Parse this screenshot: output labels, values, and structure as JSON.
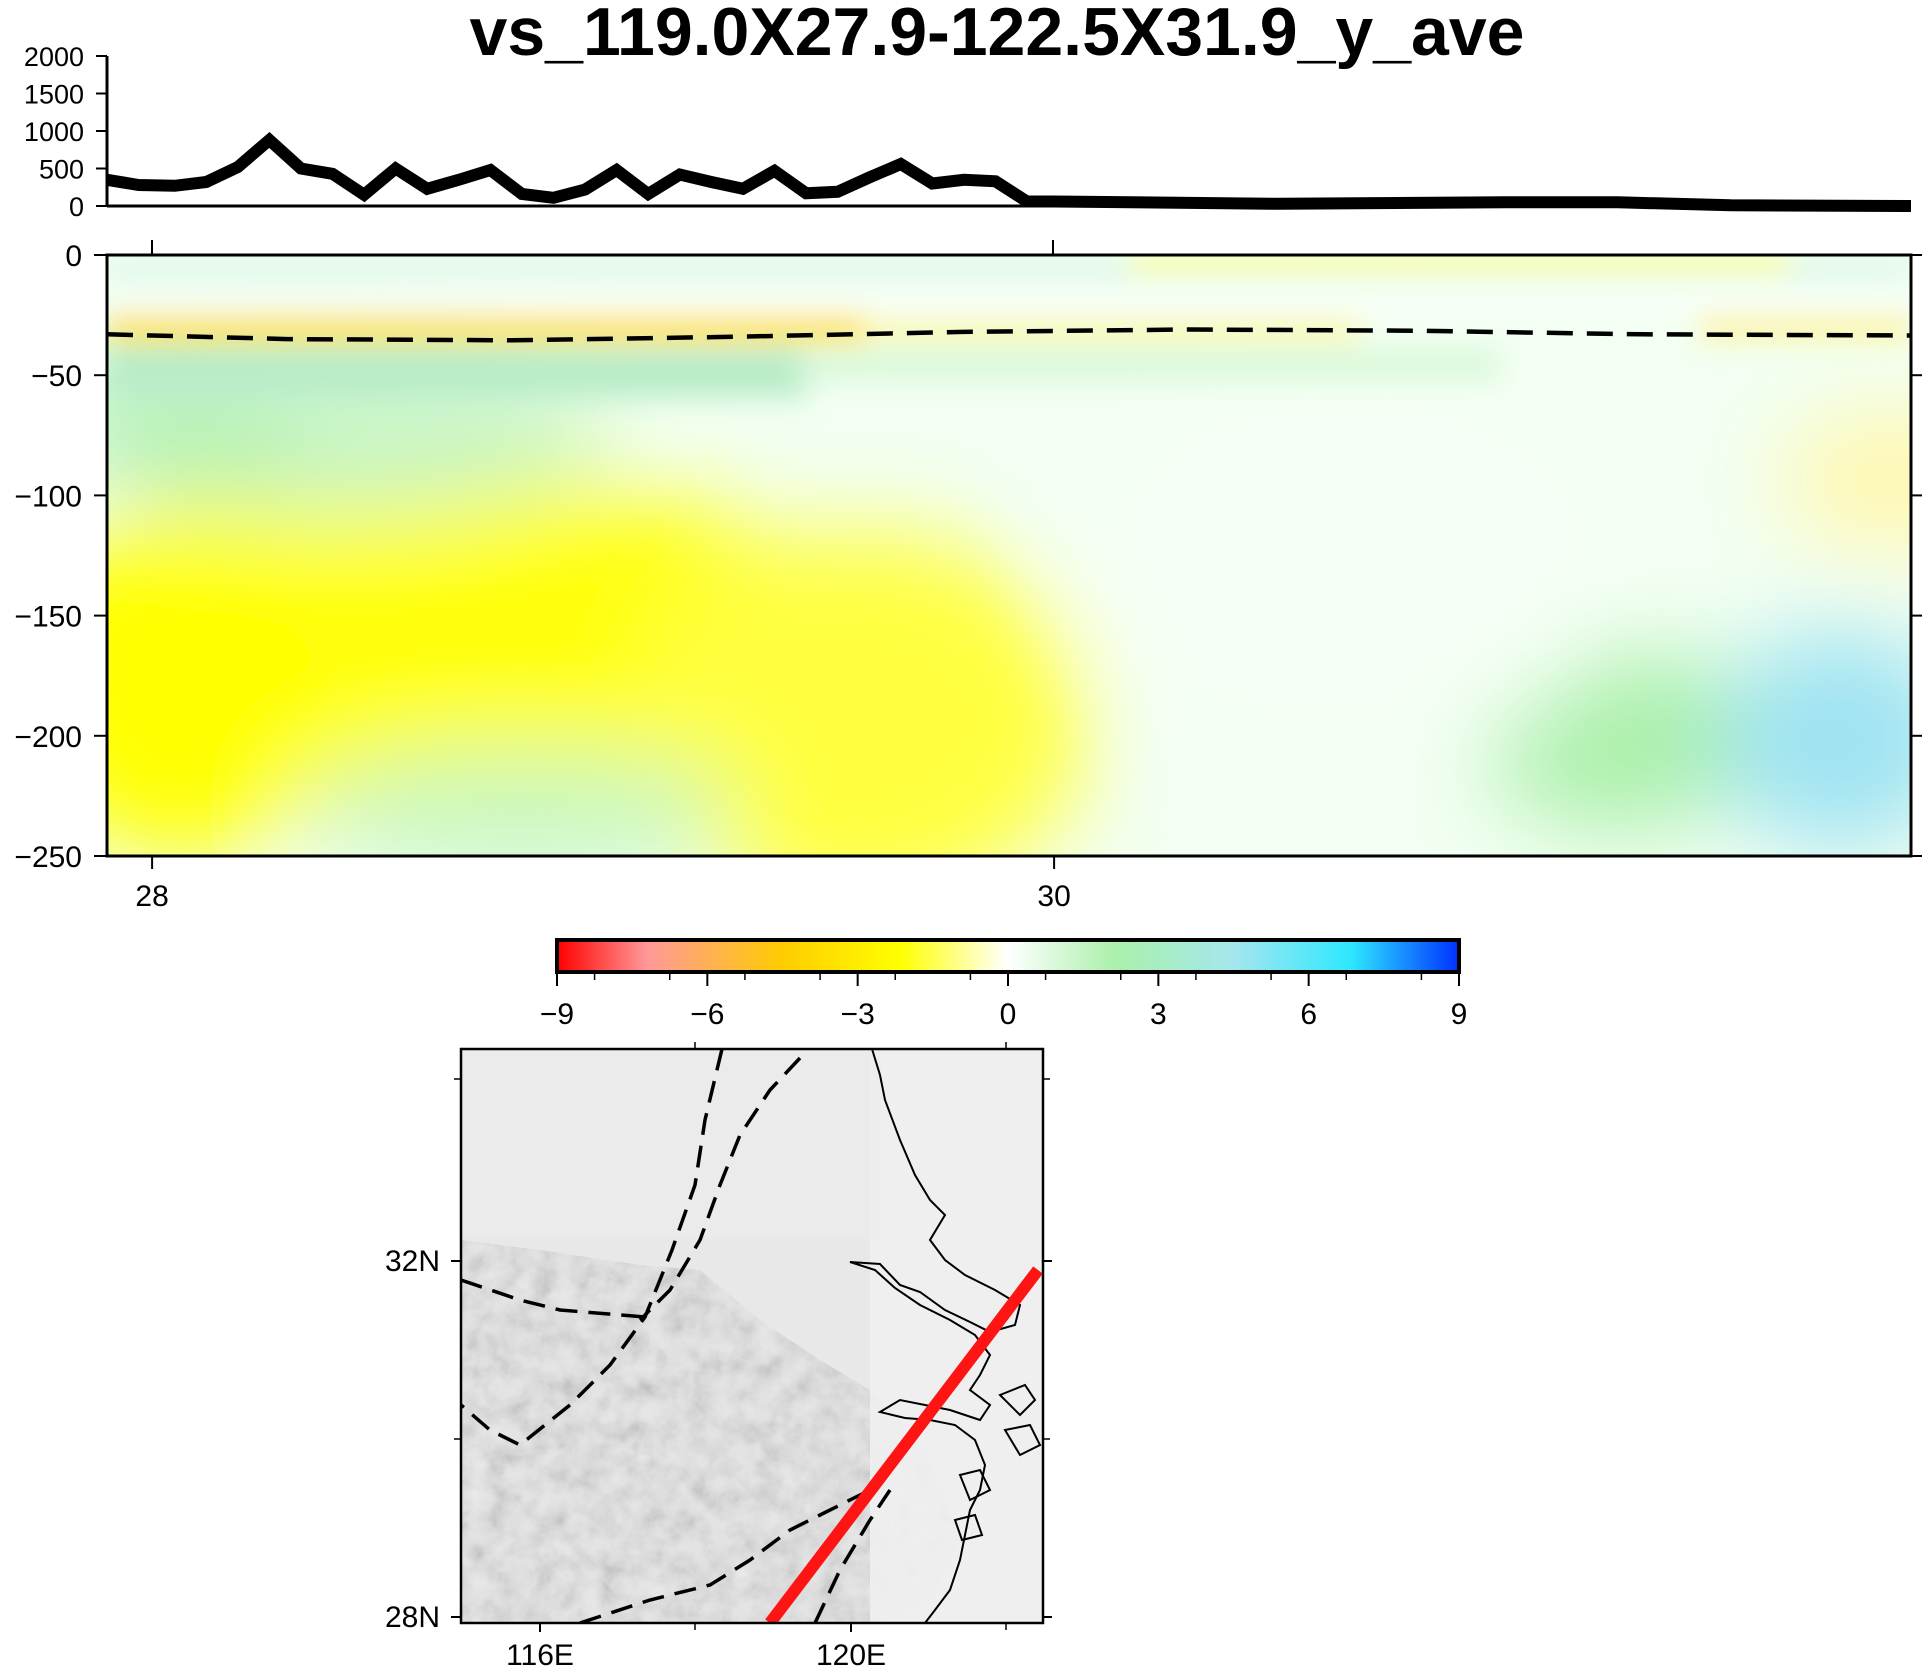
{
  "chart_data": [
    {
      "type": "line",
      "panel": "topography",
      "title": "vs_119.0X27.9-122.5X31.9_y_ave",
      "ylim": [
        0,
        2000
      ],
      "yticks": [
        "2000",
        "1500",
        "1000",
        "500",
        "0"
      ],
      "xlim": [
        27.9,
        31.9
      ],
      "x": [
        27.9,
        27.97,
        28.05,
        28.12,
        28.19,
        28.26,
        28.33,
        28.4,
        28.47,
        28.54,
        28.61,
        28.68,
        28.75,
        28.82,
        28.89,
        28.96,
        29.03,
        29.1,
        29.17,
        29.24,
        29.31,
        29.38,
        29.45,
        29.52,
        29.59,
        29.66,
        29.73,
        29.8,
        29.87,
        29.94,
        30.0,
        30.5,
        31.0,
        31.25,
        31.5,
        31.9
      ],
      "values": [
        350,
        280,
        270,
        320,
        520,
        880,
        500,
        430,
        150,
        500,
        230,
        350,
        480,
        160,
        110,
        220,
        480,
        160,
        420,
        320,
        230,
        470,
        170,
        190,
        380,
        560,
        300,
        350,
        330,
        60,
        60,
        30,
        50,
        50,
        10,
        0
      ]
    },
    {
      "type": "heatmap",
      "panel": "vs-section",
      "xlim": [
        27.9,
        31.9
      ],
      "ylim": [
        -250,
        0
      ],
      "xticks": [
        "28",
        "30"
      ],
      "yticks": [
        "0",
        "−50",
        "−100",
        "−150",
        "−200",
        "−250"
      ],
      "moho_line": {
        "x": [
          27.9,
          28.3,
          28.8,
          29.3,
          29.8,
          30.3,
          30.8,
          31.3,
          31.9
        ],
        "depth": [
          -33,
          -35,
          -35.5,
          -34,
          -32,
          -31,
          -31.5,
          -33,
          -33.5
        ]
      }
    },
    {
      "type": "colorbar",
      "range": [
        -9,
        9
      ],
      "ticks": [
        "−9",
        "−6",
        "−3",
        "0",
        "3",
        "6",
        "9"
      ],
      "stops": [
        "#ff0000",
        "#ff9999",
        "#ffcc00",
        "#ffff00",
        "#ffffff",
        "#aaf0aa",
        "#a5e6ee",
        "#2ee8ff",
        "#0030ff"
      ]
    },
    {
      "type": "map",
      "panel": "location-map",
      "lon_ticks": [
        "116E",
        "120E"
      ],
      "lat_ticks": [
        "32N",
        "28N"
      ],
      "profile": {
        "start": "119.0E 27.9N",
        "end": "122.5E 31.9N",
        "color": "#ff1414"
      }
    }
  ],
  "colors": {
    "topo_line": "#000000",
    "profile_line": "#ff1414",
    "map_background": "#dcdcdc"
  }
}
